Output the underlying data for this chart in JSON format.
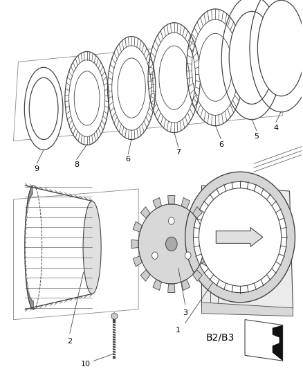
{
  "background_color": "#ffffff",
  "line_color": "#444444",
  "label_fontsize": 8,
  "fig_width": 4.38,
  "fig_height": 5.33,
  "dpi": 100,
  "b2b3_fontsize": 10
}
